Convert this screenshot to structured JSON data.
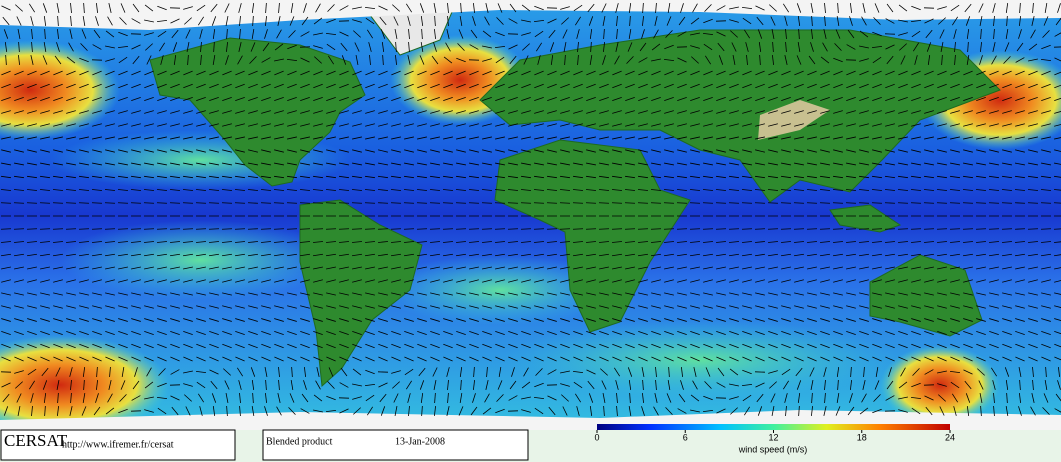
{
  "footer": {
    "logo": "CERSAT",
    "url": "http://www.ifremer.fr/cersat",
    "product": "Blended product",
    "date": "13-Jan-2008"
  },
  "colorbar": {
    "label": "wind speed (m/s)",
    "lim": [
      0,
      24
    ],
    "ticks": [
      0,
      6,
      12,
      18,
      24
    ]
  }
}
